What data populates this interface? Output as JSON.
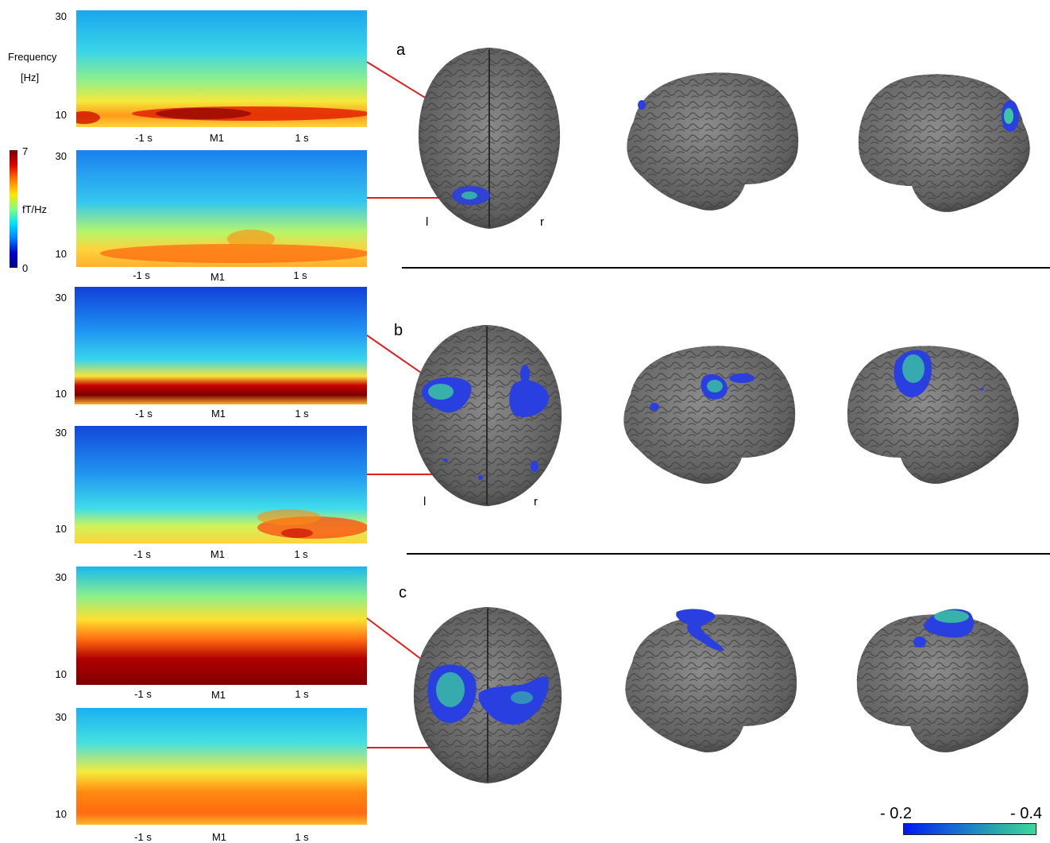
{
  "y_axis": {
    "title_line1": "Frequency",
    "title_line2": "[Hz]"
  },
  "colorbar": {
    "max_label": "7",
    "unit_label": "fT/Hz",
    "min_label": "0"
  },
  "spectrograms": [
    {
      "y_top": "30",
      "y_bottom": "10",
      "x_labels": [
        "-1 s",
        "M1",
        "1 s"
      ]
    },
    {
      "y_top": "30",
      "y_bottom": "10",
      "x_labels": [
        "-1 s",
        "M1",
        "1 s"
      ]
    },
    {
      "y_top": "30",
      "y_bottom": "10",
      "x_labels": [
        "-1 s",
        "M1",
        "1 s"
      ]
    },
    {
      "y_top": "30",
      "y_bottom": "10",
      "x_labels": [
        "-1 s",
        "M1",
        "1 s"
      ]
    },
    {
      "y_top": "30",
      "y_bottom": "10",
      "x_labels": [
        "-1 s",
        "M1",
        "1 s"
      ]
    },
    {
      "y_top": "30",
      "y_bottom": "10",
      "x_labels": [
        "-1 s",
        "M1",
        "1 s"
      ]
    }
  ],
  "panels": [
    {
      "letter": "a",
      "left_label": "l",
      "right_label": "r"
    },
    {
      "letter": "b",
      "left_label": "l",
      "right_label": "r"
    },
    {
      "letter": "c"
    }
  ],
  "activation_scale": {
    "low_label": "- 0.2",
    "high_label": "- 0.4"
  },
  "colors": {
    "connector": "#e02020",
    "separator": "#000000",
    "brain": "#6d6d6d",
    "activation": "#2a3fe0"
  }
}
